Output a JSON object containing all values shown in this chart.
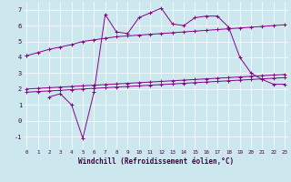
{
  "xlabel": "Windchill (Refroidissement éolien,°C)",
  "background_color": "#cce8ee",
  "line_color": "#880088",
  "x_values": [
    0,
    1,
    2,
    3,
    4,
    5,
    6,
    7,
    8,
    9,
    10,
    11,
    12,
    13,
    14,
    15,
    16,
    17,
    18,
    19,
    20,
    21,
    22,
    23
  ],
  "y_main": [
    4.1,
    null,
    1.5,
    1.7,
    1.0,
    -1.1,
    1.8,
    6.7,
    5.6,
    5.5,
    6.5,
    6.8,
    7.1,
    6.1,
    6.0,
    6.5,
    6.6,
    6.6,
    5.9,
    4.0,
    3.0,
    2.6,
    2.3,
    2.3
  ],
  "y_upper": [
    4.1,
    4.3,
    4.5,
    4.65,
    4.8,
    5.0,
    5.1,
    5.2,
    5.3,
    5.35,
    5.4,
    5.45,
    5.5,
    5.55,
    5.6,
    5.65,
    5.7,
    5.75,
    5.8,
    5.85,
    5.9,
    5.95,
    6.0,
    6.05
  ],
  "y_lin1": [
    2.0,
    2.04,
    2.08,
    2.12,
    2.16,
    2.2,
    2.24,
    2.28,
    2.32,
    2.36,
    2.4,
    2.44,
    2.48,
    2.52,
    2.56,
    2.6,
    2.64,
    2.68,
    2.72,
    2.76,
    2.8,
    2.84,
    2.88,
    2.92
  ],
  "y_lin2": [
    1.8,
    1.84,
    1.88,
    1.92,
    1.96,
    2.0,
    2.04,
    2.08,
    2.12,
    2.16,
    2.2,
    2.24,
    2.28,
    2.32,
    2.36,
    2.4,
    2.44,
    2.48,
    2.52,
    2.56,
    2.6,
    2.64,
    2.68,
    2.72
  ],
  "yticks": [
    -1,
    0,
    1,
    2,
    3,
    4,
    5,
    6,
    7
  ],
  "ylim": [
    -1.8,
    7.5
  ],
  "xlim": [
    -0.3,
    23.3
  ]
}
